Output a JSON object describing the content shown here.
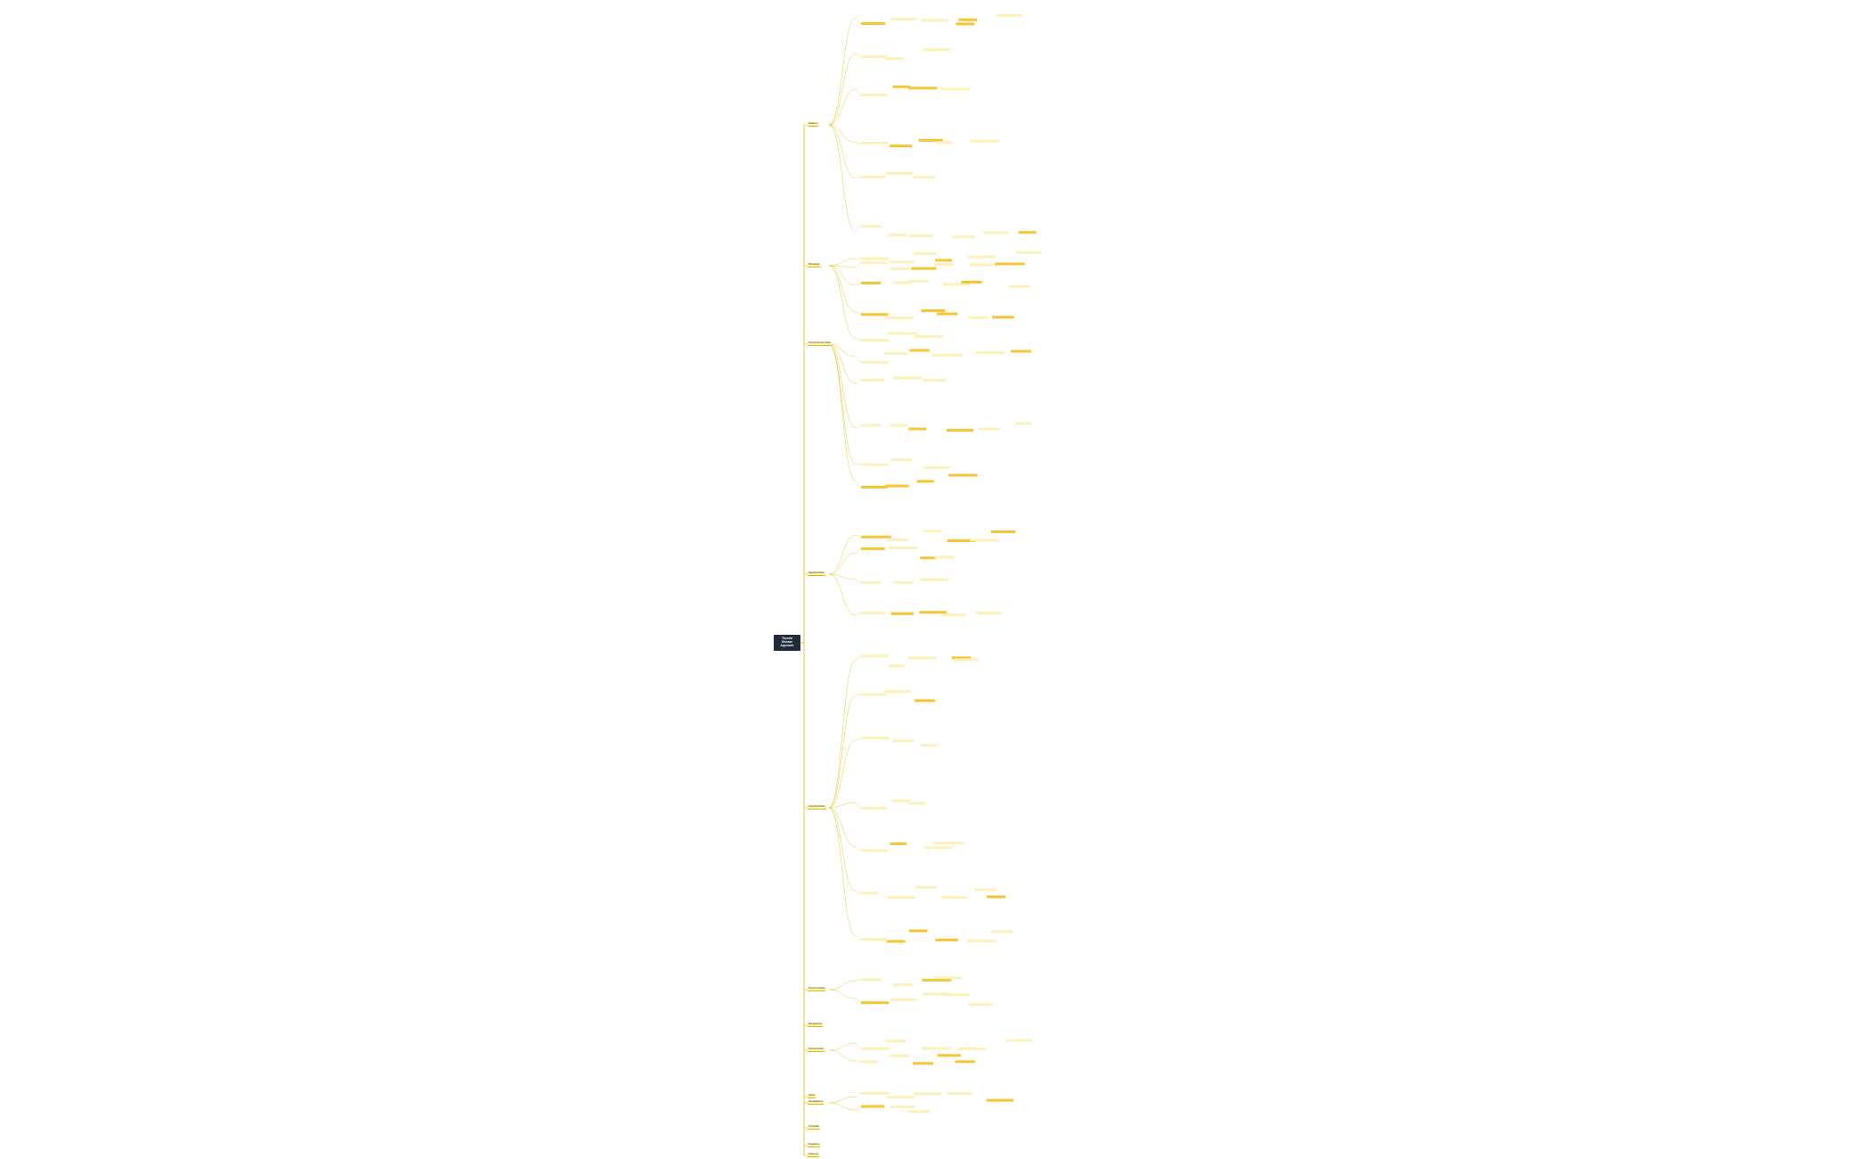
{
  "root": {
    "lines": [
      "Thyroid",
      "Disease",
      "Approach"
    ]
  },
  "colors": {
    "branch_line": "#e8b800",
    "highlight": "#f7c531",
    "root_bg": "#1f2a3a"
  },
  "branches": [
    {
      "id": "b1",
      "label": "Anatomy"
    },
    {
      "id": "b2",
      "label": "Physiology"
    },
    {
      "id": "b3",
      "label": "Thyroid function tests"
    },
    {
      "id": "b4",
      "label": "Hypothyroidism"
    },
    {
      "id": "b5",
      "label": "Hyperthyroidism"
    },
    {
      "id": "b6",
      "label": "Thyroid nodules"
    },
    {
      "id": "b7",
      "label": "Thyroid cancer"
    },
    {
      "id": "b8",
      "label": "Goitre"
    },
    {
      "id": "b9",
      "label": "Thyroiditis"
    },
    {
      "id": "b10",
      "label": "Pregnancy"
    },
    {
      "id": "b11",
      "label": "Investigations"
    },
    {
      "id": "b12",
      "label": "Management"
    },
    {
      "id": "b13",
      "label": "Follow up"
    }
  ],
  "side_note": "Nodes of this mind map carry small text that is not legible at this resolution"
}
